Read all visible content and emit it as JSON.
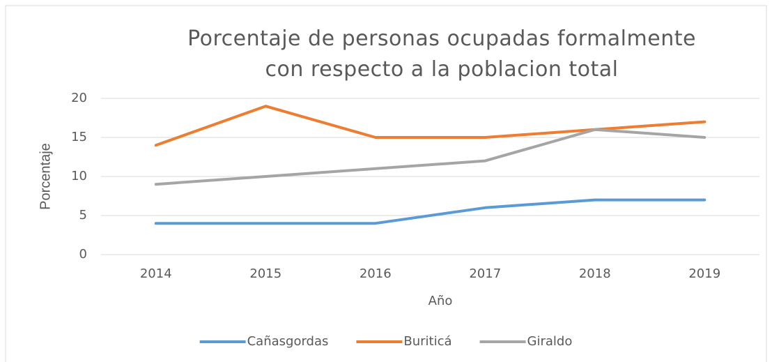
{
  "chart_data": {
    "type": "line",
    "title": "Porcentaje de personas ocupadas formalmente con respecto a la poblacion total",
    "x_label": "Año",
    "y_label": "Porcentaje",
    "categories": [
      "2014",
      "2015",
      "2016",
      "2017",
      "2018",
      "2019"
    ],
    "series": [
      {
        "name": "Cañasgordas",
        "color": "#5b9bd5",
        "values": [
          4,
          4,
          4,
          6,
          7,
          7
        ]
      },
      {
        "name": "Buriticá",
        "color": "#ed7d31",
        "values": [
          14,
          19,
          15,
          15,
          16,
          17
        ]
      },
      {
        "name": "Giraldo",
        "color": "#a5a5a5",
        "values": [
          9,
          10,
          11,
          12,
          16,
          15
        ]
      }
    ],
    "ylim": [
      0,
      20
    ],
    "yticks": [
      0,
      5,
      10,
      15,
      20
    ],
    "grid": true,
    "legend": "bottom"
  }
}
